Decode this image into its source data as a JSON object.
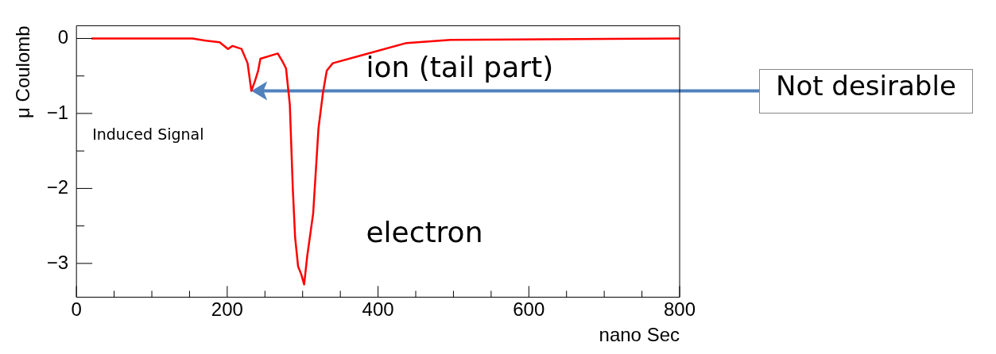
{
  "chart_data": {
    "type": "line",
    "xlabel": "nano Sec",
    "ylabel": "μ Coulomb",
    "x": [
      20,
      154,
      172,
      190,
      201,
      207,
      219,
      227,
      232,
      237,
      241,
      244,
      267,
      274,
      278,
      283,
      287,
      290,
      294,
      298,
      302,
      306,
      314,
      321,
      327,
      332,
      340,
      376,
      438,
      496,
      800
    ],
    "series": [
      {
        "color": "#ff0000",
        "values": [
          0,
          0,
          -0.03,
          -0.05,
          -0.14,
          -0.1,
          -0.14,
          -0.33,
          -0.7,
          -0.56,
          -0.43,
          -0.27,
          -0.2,
          -0.32,
          -0.4,
          -0.88,
          -2.01,
          -2.65,
          -3.04,
          -3.14,
          -3.28,
          -2.91,
          -2.33,
          -1.2,
          -0.72,
          -0.43,
          -0.33,
          -0.23,
          -0.06,
          -0.02,
          0
        ]
      }
    ],
    "xlim": [
      0,
      800
    ],
    "ylim": [
      -3.45,
      0.17
    ],
    "xticks": [
      0,
      {
        "value": 50,
        "label": null
      },
      {
        "value": 100,
        "label": null
      },
      {
        "value": 150,
        "label": null
      },
      200,
      {
        "value": 250,
        "label": null
      },
      {
        "value": 300,
        "label": null
      },
      {
        "value": 350,
        "label": null
      },
      400,
      {
        "value": 450,
        "label": null
      },
      {
        "value": 500,
        "label": null
      },
      {
        "value": 550,
        "label": null
      },
      600,
      {
        "value": 650,
        "label": null
      },
      {
        "value": 700,
        "label": null
      },
      {
        "value": 750,
        "label": null
      },
      800
    ],
    "yticks": [
      -3,
      {
        "value": -2.5,
        "label": null
      },
      -2,
      {
        "value": -1.5,
        "label": null
      },
      -1,
      {
        "value": -0.5,
        "label": null
      },
      0
    ],
    "grid": false,
    "legend": false,
    "marker": "none",
    "line_style": "solid",
    "annotations": [
      "Induced Signal",
      "ion (tail part)",
      "electron",
      "Not desirable"
    ]
  }
}
